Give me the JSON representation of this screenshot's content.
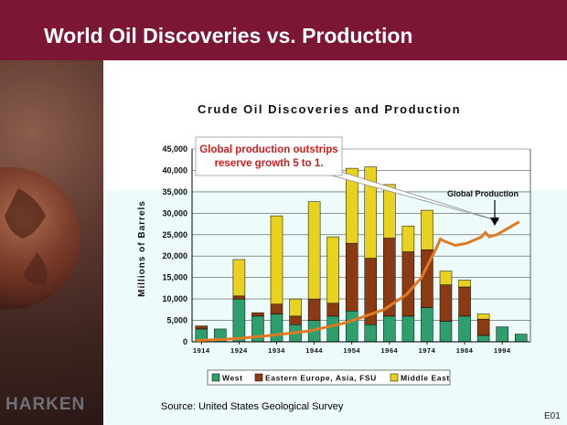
{
  "slide": {
    "title": "World Oil Discoveries vs. Production",
    "brand": "HARKEN",
    "source": "Source: United States Geological Survey",
    "code": "E01"
  },
  "colors": {
    "header": "#7b1634",
    "west": "#2e9e6c",
    "eastern": "#8b3a12",
    "middle_east": "#e8d21f",
    "production": "#e07a22",
    "callout_text": "#d21c1c"
  },
  "chart_data": {
    "type": "bar",
    "title": "Crude Oil Discoveries and Production",
    "ylabel": "Millions of Barrels",
    "xlabel": "",
    "ylim": [
      0,
      45000
    ],
    "yticks": [
      "0",
      "5,000",
      "10,000",
      "15,000",
      "20,000",
      "25,000",
      "30,000",
      "35,000",
      "40,000",
      "45,000"
    ],
    "xtick_labels": [
      "1914",
      "1924",
      "1934",
      "1944",
      "1954",
      "1964",
      "1974",
      "1984",
      "1994"
    ],
    "categories": [
      "1914",
      "1919",
      "1924",
      "1929",
      "1934",
      "1939",
      "1944",
      "1949",
      "1954",
      "1959",
      "1964",
      "1969",
      "1974",
      "1979",
      "1984",
      "1989",
      "1994",
      "1999"
    ],
    "series": [
      {
        "name": "West",
        "values": [
          3000,
          3000,
          10000,
          6000,
          6500,
          4000,
          5000,
          6000,
          7200,
          4000,
          6000,
          6000,
          8000,
          4800,
          6000,
          1500,
          3500,
          1800
        ]
      },
      {
        "name": "Eastern Europe, Asia, FSU",
        "values": [
          700,
          0,
          700,
          800,
          2300,
          2000,
          5000,
          3000,
          15800,
          15500,
          18200,
          15000,
          13500,
          8500,
          6800,
          3800,
          0,
          0
        ]
      },
      {
        "name": "Middle East",
        "values": [
          0,
          0,
          8500,
          0,
          20600,
          4000,
          22700,
          15500,
          17500,
          21300,
          12500,
          6000,
          9200,
          3200,
          1600,
          1200,
          0,
          0
        ]
      }
    ],
    "production_line": {
      "name": "Global Production",
      "x": [
        1914,
        1924,
        1934,
        1944,
        1954,
        1964,
        1970,
        1974,
        1978,
        1979,
        1980,
        1983,
        1986,
        1990,
        1991,
        1992,
        1994,
        1998,
        2000
      ],
      "y": [
        300,
        700,
        1500,
        2500,
        4500,
        7500,
        11000,
        15000,
        22000,
        24000,
        23500,
        22500,
        23000,
        24500,
        25500,
        24500,
        25000,
        27000,
        28000
      ]
    },
    "annotations": [
      {
        "text": "Global production outstrips reserve growth 5 to 1.",
        "lines": [
          "Global production outstrips",
          "reserve growth 5 to 1."
        ]
      },
      {
        "text": "Global Production"
      }
    ],
    "legend": {
      "position": "bottom"
    },
    "grid": {
      "y": true,
      "x": false
    }
  }
}
